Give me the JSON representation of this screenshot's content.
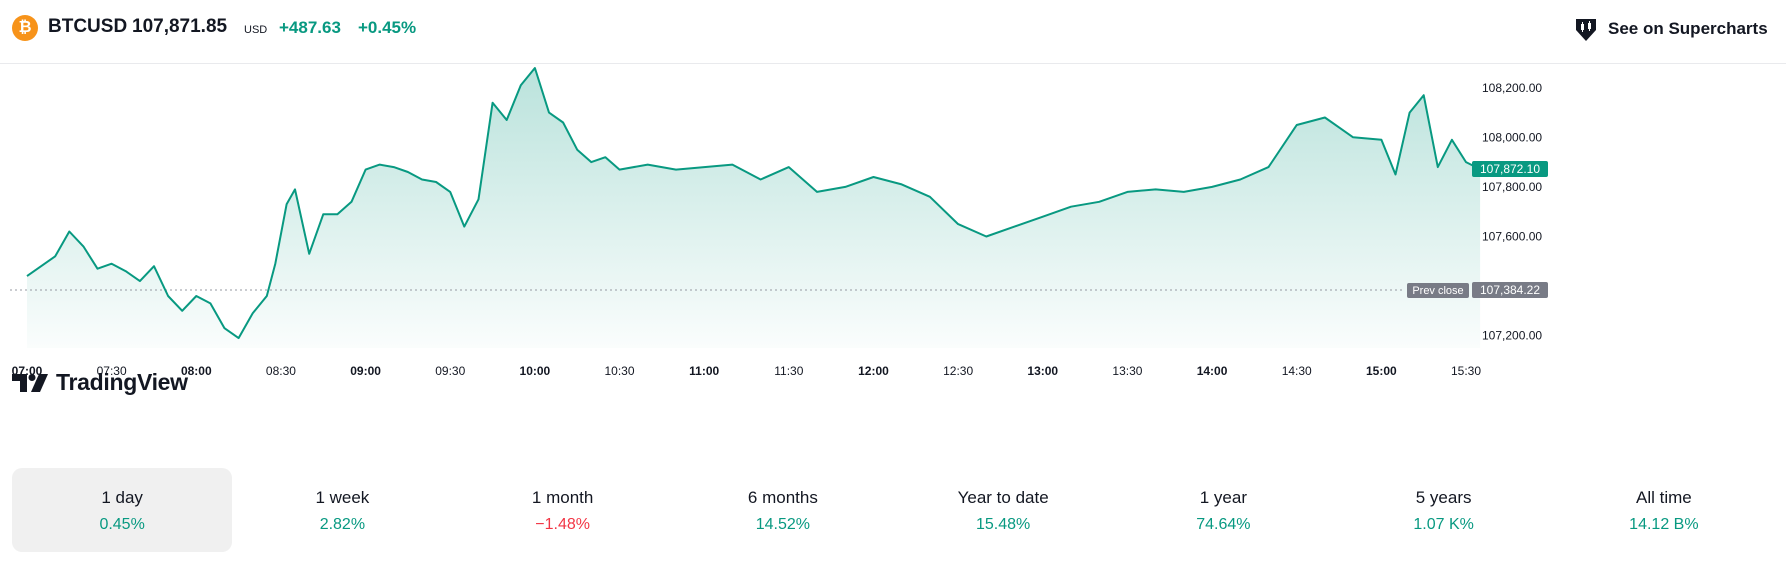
{
  "header": {
    "icon_glyph": "₿",
    "symbol": "BTCUSD",
    "price": "107,871.85",
    "currency": "USD",
    "change_abs": "+487.63",
    "change_pct": "+0.45%",
    "supercharts_label": "See on Supercharts"
  },
  "logo": {
    "text": "TradingView"
  },
  "colors": {
    "up": "#089981",
    "down": "#f23645",
    "line": "#089981",
    "text": "#131722",
    "muted": "#787b86",
    "prev_close": "#787b86"
  },
  "chart_data": {
    "type": "area",
    "symbol": "BTCUSD",
    "x_ticks": [
      {
        "label": "07:00",
        "bold": true
      },
      {
        "label": "07:30",
        "bold": false
      },
      {
        "label": "08:00",
        "bold": true
      },
      {
        "label": "08:30",
        "bold": false
      },
      {
        "label": "09:00",
        "bold": true
      },
      {
        "label": "09:30",
        "bold": false
      },
      {
        "label": "10:00",
        "bold": true
      },
      {
        "label": "10:30",
        "bold": false
      },
      {
        "label": "11:00",
        "bold": true
      },
      {
        "label": "11:30",
        "bold": false
      },
      {
        "label": "12:00",
        "bold": true
      },
      {
        "label": "12:30",
        "bold": false
      },
      {
        "label": "13:00",
        "bold": true
      },
      {
        "label": "13:30",
        "bold": false
      },
      {
        "label": "14:00",
        "bold": true
      },
      {
        "label": "14:30",
        "bold": false
      },
      {
        "label": "15:00",
        "bold": true
      },
      {
        "label": "15:30",
        "bold": false
      }
    ],
    "y_ticks": [
      {
        "label": "108,200.00",
        "value": 108200
      },
      {
        "label": "108,000.00",
        "value": 108000
      },
      {
        "label": "107,800.00",
        "value": 107800
      },
      {
        "label": "107,600.00",
        "value": 107600
      },
      {
        "label": "107,200.00",
        "value": 107200
      }
    ],
    "ylim": [
      107150,
      108300
    ],
    "last_price": {
      "label": "107,872.10",
      "value": 107872.1
    },
    "prev_close": {
      "label": "107,384.22",
      "value": 107384.22,
      "tag": "Prev close"
    },
    "series": [
      {
        "x": [
          "07:00",
          "07:10",
          "07:15",
          "07:20",
          "07:25",
          "07:30",
          "07:35",
          "07:40",
          "07:45",
          "07:50",
          "07:55",
          "08:00",
          "08:05",
          "08:10",
          "08:15",
          "08:20",
          "08:25",
          "08:28",
          "08:32",
          "08:35",
          "08:40",
          "08:45",
          "08:50",
          "08:55",
          "09:00",
          "09:05",
          "09:10",
          "09:15",
          "09:20",
          "09:25",
          "09:30",
          "09:35",
          "09:40",
          "09:45",
          "09:50",
          "09:55",
          "10:00",
          "10:05",
          "10:10",
          "10:15",
          "10:20",
          "10:25",
          "10:30",
          "10:40",
          "10:50",
          "11:00",
          "11:10",
          "11:20",
          "11:30",
          "11:40",
          "11:50",
          "12:00",
          "12:10",
          "12:20",
          "12:30",
          "12:40",
          "12:50",
          "13:00",
          "13:10",
          "13:20",
          "13:30",
          "13:40",
          "13:50",
          "14:00",
          "14:10",
          "14:20",
          "14:30",
          "14:40",
          "14:50",
          "15:00",
          "15:05",
          "15:10",
          "15:15",
          "15:20",
          "15:25",
          "15:30",
          "15:35"
        ],
        "y": [
          107440,
          107520,
          107620,
          107560,
          107470,
          107490,
          107460,
          107420,
          107480,
          107360,
          107300,
          107360,
          107330,
          107230,
          107190,
          107290,
          107360,
          107490,
          107730,
          107790,
          107530,
          107690,
          107690,
          107740,
          107870,
          107890,
          107880,
          107860,
          107830,
          107820,
          107780,
          107640,
          107750,
          108140,
          108070,
          108210,
          108280,
          108100,
          108060,
          107950,
          107900,
          107920,
          107870,
          107890,
          107870,
          107880,
          107890,
          107830,
          107880,
          107780,
          107800,
          107840,
          107810,
          107760,
          107650,
          107600,
          107640,
          107680,
          107720,
          107740,
          107780,
          107790,
          107780,
          107800,
          107830,
          107880,
          108050,
          108080,
          108000,
          107990,
          107850,
          108100,
          108170,
          107880,
          107990,
          107900,
          107872
        ]
      }
    ]
  },
  "ranges": [
    {
      "label": "1 day",
      "value": "0.45%",
      "dir": "pos",
      "active": true
    },
    {
      "label": "1 week",
      "value": "2.82%",
      "dir": "pos",
      "active": false
    },
    {
      "label": "1 month",
      "value": "−1.48%",
      "dir": "neg",
      "active": false
    },
    {
      "label": "6 months",
      "value": "14.52%",
      "dir": "pos",
      "active": false
    },
    {
      "label": "Year to date",
      "value": "15.48%",
      "dir": "pos",
      "active": false
    },
    {
      "label": "1 year",
      "value": "74.64%",
      "dir": "pos",
      "active": false
    },
    {
      "label": "5 years",
      "value": "1.07 K%",
      "dir": "pos",
      "active": false
    },
    {
      "label": "All time",
      "value": "14.12 B%",
      "dir": "pos",
      "active": false
    }
  ]
}
